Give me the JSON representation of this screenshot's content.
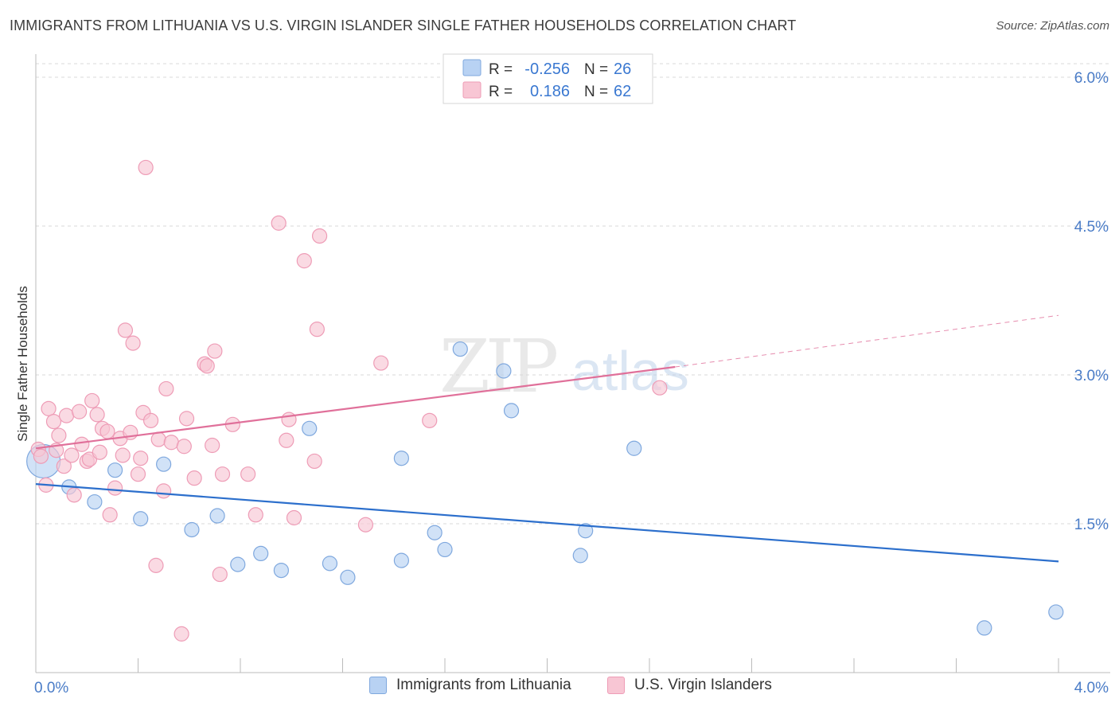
{
  "title": "IMMIGRANTS FROM LITHUANIA VS U.S. VIRGIN ISLANDER SINGLE FATHER HOUSEHOLDS CORRELATION CHART",
  "source": "Source: ZipAtlas.com",
  "watermark": {
    "zip": "ZIP",
    "atlas": "atlas"
  },
  "colors": {
    "blue_fill": "#b8d2f3",
    "blue_stroke": "#7fa8de",
    "blue_line": "#2c6fcc",
    "pink_fill": "#f8c6d4",
    "pink_stroke": "#ee9cb6",
    "pink_line": "#e0709a",
    "axis_label": "#4a7cc7",
    "grid": "#d9d9d9"
  },
  "legend": {
    "rows": [
      {
        "r_label": "R =",
        "r_value": "-0.256",
        "n_label": "N =",
        "n_value": "26"
      },
      {
        "r_label": "R =",
        "r_value": "0.186",
        "n_label": "N =",
        "n_value": "62"
      }
    ]
  },
  "chart_data": {
    "type": "scatter",
    "title": "IMMIGRANTS FROM LITHUANIA VS U.S. VIRGIN ISLANDER SINGLE FATHER HOUSEHOLDS CORRELATION CHART",
    "xlabel": "",
    "ylabel": "Single Father Households",
    "xlim": [
      0,
      4.0
    ],
    "ylim": [
      0,
      6.2
    ],
    "x_tick_labels": [
      "0.0%",
      "4.0%"
    ],
    "y_ticks": [
      1.5,
      3.0,
      4.5,
      6.0
    ],
    "y_tick_labels": [
      "1.5%",
      "3.0%",
      "4.5%",
      "6.0%"
    ],
    "grid": true,
    "legend_position": "top-center",
    "series": [
      {
        "name": "Immigrants from Lithuania",
        "color": "#b8d2f3",
        "r": -0.256,
        "n": 26,
        "trend": {
          "x": [
            0.0,
            4.0
          ],
          "y": [
            1.9,
            1.12
          ]
        },
        "points": [
          {
            "x": 0.03,
            "y": 2.13,
            "big": true
          },
          {
            "x": 0.13,
            "y": 1.87
          },
          {
            "x": 0.23,
            "y": 1.72
          },
          {
            "x": 0.31,
            "y": 2.04
          },
          {
            "x": 0.41,
            "y": 1.55
          },
          {
            "x": 0.5,
            "y": 2.1
          },
          {
            "x": 0.61,
            "y": 1.44
          },
          {
            "x": 0.71,
            "y": 1.58
          },
          {
            "x": 0.79,
            "y": 1.09
          },
          {
            "x": 0.88,
            "y": 1.2
          },
          {
            "x": 0.96,
            "y": 1.03
          },
          {
            "x": 1.07,
            "y": 2.46
          },
          {
            "x": 1.15,
            "y": 1.1
          },
          {
            "x": 1.22,
            "y": 0.96
          },
          {
            "x": 1.43,
            "y": 2.16
          },
          {
            "x": 1.43,
            "y": 1.13
          },
          {
            "x": 1.56,
            "y": 1.41
          },
          {
            "x": 1.6,
            "y": 1.24
          },
          {
            "x": 1.66,
            "y": 3.26
          },
          {
            "x": 1.83,
            "y": 3.04
          },
          {
            "x": 1.86,
            "y": 2.64
          },
          {
            "x": 2.13,
            "y": 1.18
          },
          {
            "x": 2.15,
            "y": 1.43
          },
          {
            "x": 2.34,
            "y": 2.26
          },
          {
            "x": 3.71,
            "y": 0.45
          },
          {
            "x": 3.99,
            "y": 0.61
          }
        ]
      },
      {
        "name": "U.S. Virgin Islanders",
        "color": "#f8c6d4",
        "r": 0.186,
        "n": 62,
        "trend": {
          "x": [
            0.0,
            2.5
          ],
          "y": [
            2.26,
            3.08
          ]
        },
        "trend_dashed": {
          "x": [
            2.5,
            4.0
          ],
          "y": [
            3.08,
            3.6
          ]
        },
        "points": [
          {
            "x": 0.01,
            "y": 2.25
          },
          {
            "x": 0.02,
            "y": 2.18
          },
          {
            "x": 0.04,
            "y": 1.89
          },
          {
            "x": 0.05,
            "y": 2.66
          },
          {
            "x": 0.07,
            "y": 2.53
          },
          {
            "x": 0.08,
            "y": 2.24
          },
          {
            "x": 0.09,
            "y": 2.39
          },
          {
            "x": 0.11,
            "y": 2.08
          },
          {
            "x": 0.12,
            "y": 2.59
          },
          {
            "x": 0.14,
            "y": 2.19
          },
          {
            "x": 0.15,
            "y": 1.79
          },
          {
            "x": 0.17,
            "y": 2.63
          },
          {
            "x": 0.18,
            "y": 2.3
          },
          {
            "x": 0.2,
            "y": 2.13
          },
          {
            "x": 0.21,
            "y": 2.15
          },
          {
            "x": 0.22,
            "y": 2.74
          },
          {
            "x": 0.24,
            "y": 2.6
          },
          {
            "x": 0.25,
            "y": 2.22
          },
          {
            "x": 0.26,
            "y": 2.46
          },
          {
            "x": 0.28,
            "y": 2.43
          },
          {
            "x": 0.29,
            "y": 1.59
          },
          {
            "x": 0.31,
            "y": 1.86
          },
          {
            "x": 0.33,
            "y": 2.36
          },
          {
            "x": 0.34,
            "y": 2.19
          },
          {
            "x": 0.35,
            "y": 3.45
          },
          {
            "x": 0.37,
            "y": 2.42
          },
          {
            "x": 0.38,
            "y": 3.32
          },
          {
            "x": 0.4,
            "y": 2.0
          },
          {
            "x": 0.41,
            "y": 2.16
          },
          {
            "x": 0.42,
            "y": 2.62
          },
          {
            "x": 0.43,
            "y": 5.09
          },
          {
            "x": 0.45,
            "y": 2.54
          },
          {
            "x": 0.47,
            "y": 1.08
          },
          {
            "x": 0.48,
            "y": 2.35
          },
          {
            "x": 0.5,
            "y": 1.83
          },
          {
            "x": 0.51,
            "y": 2.86
          },
          {
            "x": 0.53,
            "y": 2.32
          },
          {
            "x": 0.57,
            "y": 0.39
          },
          {
            "x": 0.58,
            "y": 2.28
          },
          {
            "x": 0.59,
            "y": 2.56
          },
          {
            "x": 0.62,
            "y": 1.96
          },
          {
            "x": 0.66,
            "y": 3.11
          },
          {
            "x": 0.67,
            "y": 3.09
          },
          {
            "x": 0.69,
            "y": 2.29
          },
          {
            "x": 0.7,
            "y": 3.24
          },
          {
            "x": 0.72,
            "y": 0.99
          },
          {
            "x": 0.73,
            "y": 2.0
          },
          {
            "x": 0.77,
            "y": 2.5
          },
          {
            "x": 0.83,
            "y": 2.0
          },
          {
            "x": 0.86,
            "y": 1.59
          },
          {
            "x": 0.95,
            "y": 4.53
          },
          {
            "x": 0.98,
            "y": 2.34
          },
          {
            "x": 0.99,
            "y": 2.55
          },
          {
            "x": 1.01,
            "y": 1.56
          },
          {
            "x": 1.05,
            "y": 4.15
          },
          {
            "x": 1.09,
            "y": 2.13
          },
          {
            "x": 1.1,
            "y": 3.46
          },
          {
            "x": 1.11,
            "y": 4.4
          },
          {
            "x": 1.29,
            "y": 1.49
          },
          {
            "x": 1.35,
            "y": 3.12
          },
          {
            "x": 1.54,
            "y": 2.54
          },
          {
            "x": 2.44,
            "y": 2.87
          }
        ]
      }
    ]
  },
  "bottom_legend": [
    {
      "label": "Immigrants from Lithuania"
    },
    {
      "label": "U.S. Virgin Islanders"
    }
  ]
}
